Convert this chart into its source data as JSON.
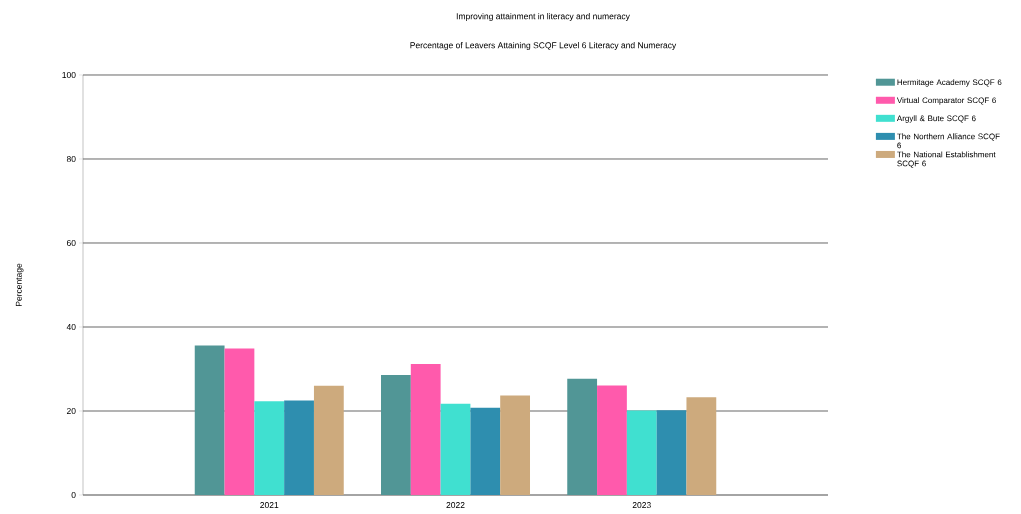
{
  "chart_data": {
    "type": "bar",
    "title": "Improving attainment in literacy and numeracy",
    "subtitle": "Percentage of Leavers Attaining SCQF Level 6 Literacy and Numeracy",
    "ylabel": "Percentage",
    "categories": [
      "2021",
      "2022",
      "2023"
    ],
    "series": [
      {
        "name": "Hermitage Academy SCQF 6",
        "color": "#519696",
        "values": [
          35.6,
          28.6,
          27.7
        ]
      },
      {
        "name": "Virtual Comparator SCQF 6",
        "color": "#ff5aac",
        "values": [
          34.9,
          31.2,
          26.1
        ]
      },
      {
        "name": "Argyll & Bute SCQF 6",
        "color": "#40e0d0",
        "values": [
          22.3,
          21.7,
          20.1
        ]
      },
      {
        "name": "The Northern Alliance SCQF 6",
        "color": "#2e8eaf",
        "values": [
          22.5,
          20.8,
          20.2
        ]
      },
      {
        "name": "The National Establishment SCQF 6",
        "color": "#cdaa7d",
        "values": [
          26.0,
          23.7,
          23.3
        ]
      }
    ],
    "ylim": [
      0,
      100
    ],
    "yticks": [
      0,
      20,
      40,
      60,
      80,
      100
    ],
    "grid": "y",
    "legend": "top right"
  }
}
